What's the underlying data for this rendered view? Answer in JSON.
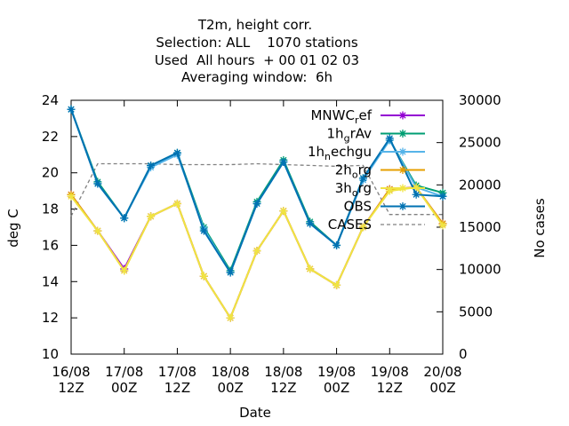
{
  "header": {
    "title_lines": [
      "T2m, height corr.",
      "Selection: ALL    1070 stations",
      "Used  All hours  + 00 01 02 03",
      "Averaging window:  6h"
    ]
  },
  "chart_data": {
    "type": "line",
    "title": "T2m, height corr.",
    "xlabel": "Date",
    "ylabel": "deg C",
    "y2label": "No cases",
    "ylim": [
      10,
      24
    ],
    "y2lim": [
      0,
      30000
    ],
    "xlim": [
      "2016-08-16T12:00",
      "2016-08-20T00:00"
    ],
    "x_tick_labels": [
      [
        "16/08",
        "12Z"
      ],
      [
        "17/08",
        "00Z"
      ],
      [
        "17/08",
        "12Z"
      ],
      [
        "18/08",
        "00Z"
      ],
      [
        "18/08",
        "12Z"
      ],
      [
        "19/08",
        "00Z"
      ],
      [
        "19/08",
        "12Z"
      ],
      [
        "20/08",
        "00Z"
      ]
    ],
    "y_ticks": [
      "10",
      "12",
      "14",
      "16",
      "18",
      "20",
      "22",
      "24"
    ],
    "y2_ticks": [
      "0",
      "5000",
      "10000",
      "15000",
      "20000",
      "25000",
      "30000"
    ],
    "x": [
      "2016-08-16T12:00",
      "2016-08-16T18:00",
      "2016-08-17T00:00",
      "2016-08-17T06:00",
      "2016-08-17T12:00",
      "2016-08-17T18:00",
      "2016-08-18T00:00",
      "2016-08-18T06:00",
      "2016-08-18T12:00",
      "2016-08-18T18:00",
      "2016-08-19T00:00",
      "2016-08-19T06:00",
      "2016-08-19T12:00",
      "2016-08-19T18:00",
      "2016-08-20T00:00"
    ],
    "legend_position": "top-right",
    "series": [
      {
        "name": "MNWC_ref",
        "legend_label": "MNWCref",
        "legend_sub": "r",
        "legend_parts": [
          "MNWC",
          "r",
          "ef"
        ],
        "axis": "y",
        "style": "solid",
        "marker": "star",
        "color": "#9400d3",
        "values": [
          18.8,
          16.8,
          14.7,
          17.6,
          18.3,
          14.3,
          12.0,
          15.7,
          17.9,
          14.7,
          13.8,
          17.0,
          19.1,
          19.2,
          17.2
        ]
      },
      {
        "name": "1h_grAv",
        "legend_label": "1hgrAv",
        "legend_parts": [
          "1h",
          "g",
          "rAv"
        ],
        "axis": "y",
        "style": "solid",
        "marker": "star",
        "color": "#009e73",
        "values": [
          23.5,
          19.5,
          17.5,
          20.4,
          21.1,
          17.0,
          14.6,
          18.4,
          20.7,
          17.3,
          16.0,
          19.7,
          21.8,
          19.3,
          18.9
        ]
      },
      {
        "name": "1h_nechgu",
        "legend_label": "1hnechgu",
        "legend_parts": [
          "1h",
          "n",
          "echgu"
        ],
        "axis": "y",
        "style": "solid",
        "marker": "star",
        "color": "#56b4e9",
        "values": [
          23.5,
          19.4,
          17.5,
          20.3,
          21.0,
          16.9,
          14.5,
          18.3,
          20.6,
          17.2,
          16.0,
          19.6,
          21.8,
          19.2,
          18.7
        ]
      },
      {
        "name": "2h_org",
        "legend_label": "2horg",
        "legend_parts": [
          "2h",
          "o",
          "rg"
        ],
        "axis": "y",
        "style": "solid",
        "marker": "star",
        "color": "#e69f00",
        "values": [
          18.8,
          16.8,
          14.6,
          17.6,
          18.3,
          14.3,
          12.0,
          15.7,
          17.9,
          14.7,
          13.8,
          17.0,
          19.1,
          19.2,
          17.2
        ]
      },
      {
        "name": "3h_org",
        "legend_label": "3horg",
        "legend_parts": [
          "3h",
          "o",
          "rg"
        ],
        "axis": "y",
        "style": "solid",
        "marker": "star",
        "color": "#f0e442",
        "values": [
          18.7,
          16.8,
          14.6,
          17.6,
          18.3,
          14.3,
          12.0,
          15.7,
          17.9,
          14.7,
          13.8,
          17.0,
          19.0,
          19.2,
          17.1
        ]
      },
      {
        "name": "OBS",
        "legend_label": "OBS",
        "legend_parts": [
          "OBS",
          "",
          ""
        ],
        "axis": "y",
        "style": "solid",
        "marker": "star",
        "color": "#0072b2",
        "values": [
          23.5,
          19.4,
          17.5,
          20.4,
          21.1,
          16.8,
          14.5,
          18.3,
          20.6,
          17.2,
          16.0,
          19.7,
          21.9,
          18.8,
          18.7
        ]
      },
      {
        "name": "CASES",
        "legend_label": "CASES",
        "legend_parts": [
          "CASES",
          "",
          ""
        ],
        "axis": "y2",
        "style": "dashed",
        "marker": "none",
        "color": "#808080",
        "values": [
          16300,
          22500,
          22500,
          22500,
          22400,
          22400,
          22400,
          22500,
          22400,
          22300,
          22200,
          22300,
          16500,
          16500,
          16500
        ]
      }
    ]
  }
}
